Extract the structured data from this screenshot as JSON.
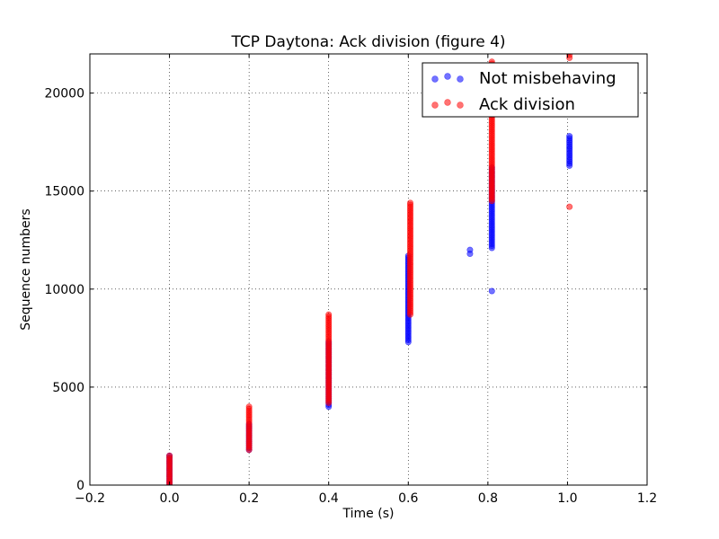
{
  "chart_data": {
    "type": "scatter",
    "title": "TCP Daytona: Ack division (figure 4)",
    "xlabel": "Time (s)",
    "ylabel": "Sequence numbers",
    "xlim": [
      -0.2,
      1.2
    ],
    "ylim": [
      0,
      22000
    ],
    "xticks": [
      -0.2,
      0.0,
      0.2,
      0.4,
      0.6,
      0.8,
      1.0,
      1.2
    ],
    "xtick_labels": [
      "−0.2",
      "0.0",
      "0.2",
      "0.4",
      "0.6",
      "0.8",
      "1.0",
      "1.2"
    ],
    "yticks": [
      0,
      5000,
      10000,
      15000,
      20000
    ],
    "ytick_labels": [
      "0",
      "5000",
      "10000",
      "15000",
      "20000"
    ],
    "grid": true,
    "legend_position": "top-right",
    "series": [
      {
        "name": "Not misbehaving",
        "color": "#0000ff",
        "clusters": [
          {
            "x": 0.0,
            "y_min": 0,
            "y_max": 1500
          },
          {
            "x": 0.2,
            "y_min": 1800,
            "y_max": 3100
          },
          {
            "x": 0.4,
            "y_min": 4000,
            "y_max": 7300
          },
          {
            "x": 0.6,
            "y_min": 7300,
            "y_max": 11700
          },
          {
            "x": 0.755,
            "y_min": 11800,
            "y_max": 12000
          },
          {
            "x": 0.81,
            "y_min": 12100,
            "y_max": 16200
          },
          {
            "x": 0.81,
            "y_min": 9900,
            "y_max": 9900
          },
          {
            "x": 1.005,
            "y_min": 16300,
            "y_max": 17800
          }
        ]
      },
      {
        "name": "Ack division",
        "color": "#ff0000",
        "clusters": [
          {
            "x": 0.0,
            "y_min": 0,
            "y_max": 1500
          },
          {
            "x": 0.2,
            "y_min": 1800,
            "y_max": 4000
          },
          {
            "x": 0.4,
            "y_min": 4200,
            "y_max": 8700
          },
          {
            "x": 0.605,
            "y_min": 8700,
            "y_max": 14400
          },
          {
            "x": 0.81,
            "y_min": 14500,
            "y_max": 21600
          },
          {
            "x": 1.005,
            "y_min": 21800,
            "y_max": 22100
          },
          {
            "x": 1.005,
            "y_min": 14200,
            "y_max": 14200
          }
        ]
      }
    ]
  }
}
